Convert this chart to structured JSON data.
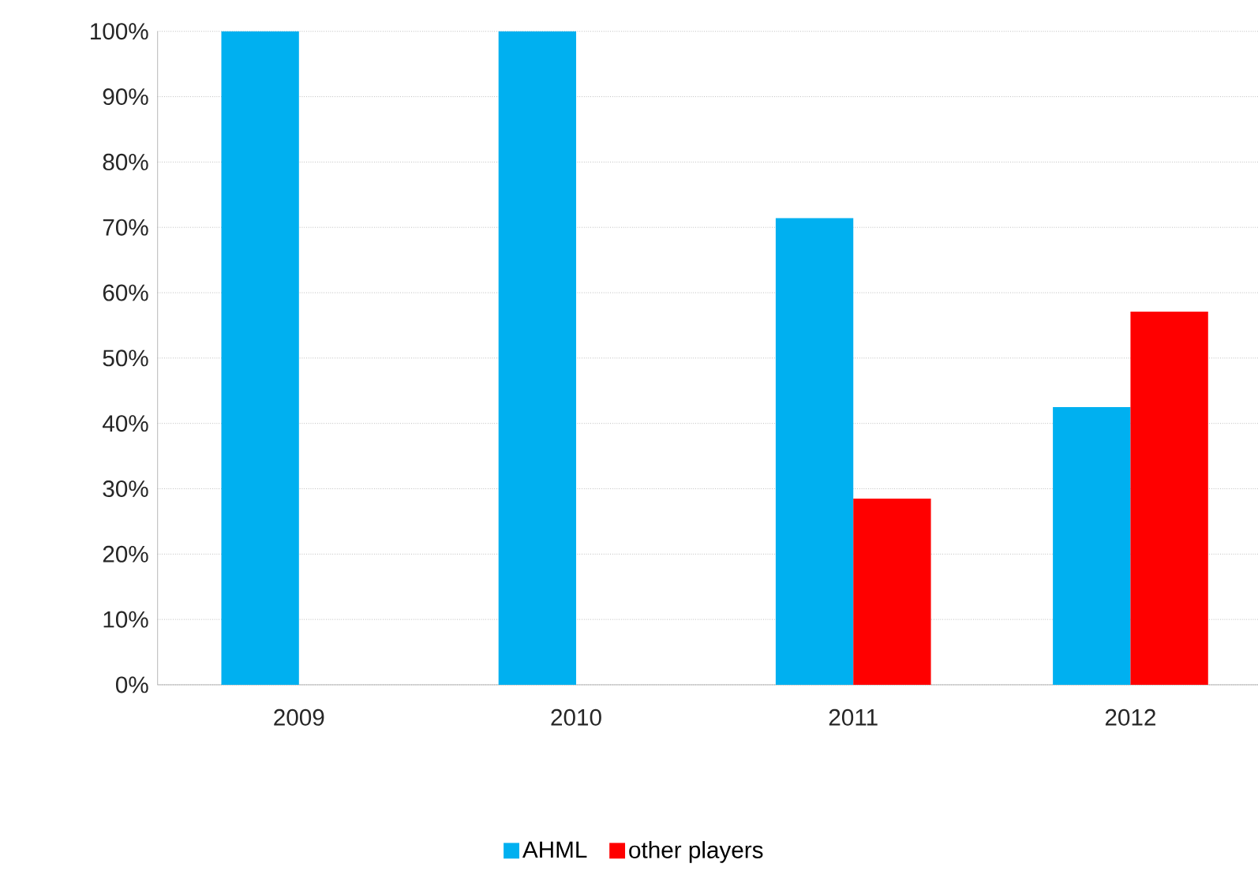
{
  "chart_data": {
    "type": "bar",
    "categories": [
      "2009",
      "2010",
      "2011",
      "2012"
    ],
    "series": [
      {
        "name": "AHML",
        "color": "#00b0f0",
        "values": [
          100,
          100,
          71.4,
          42.5
        ]
      },
      {
        "name": "other players",
        "color": "#ff0000",
        "values": [
          null,
          null,
          28.5,
          57.1
        ]
      }
    ],
    "ylim": [
      0,
      100
    ],
    "yticks": [
      {
        "value": 0,
        "label": "0%"
      },
      {
        "value": 10,
        "label": "10%"
      },
      {
        "value": 20,
        "label": "20%"
      },
      {
        "value": 30,
        "label": "30%"
      },
      {
        "value": 40,
        "label": "40%"
      },
      {
        "value": 50,
        "label": "50%"
      },
      {
        "value": 60,
        "label": "60%"
      },
      {
        "value": 70,
        "label": "70%"
      },
      {
        "value": 80,
        "label": "80%"
      },
      {
        "value": 90,
        "label": "90%"
      },
      {
        "value": 100,
        "label": "100%"
      }
    ],
    "grid": "y",
    "legend": "bottom"
  }
}
